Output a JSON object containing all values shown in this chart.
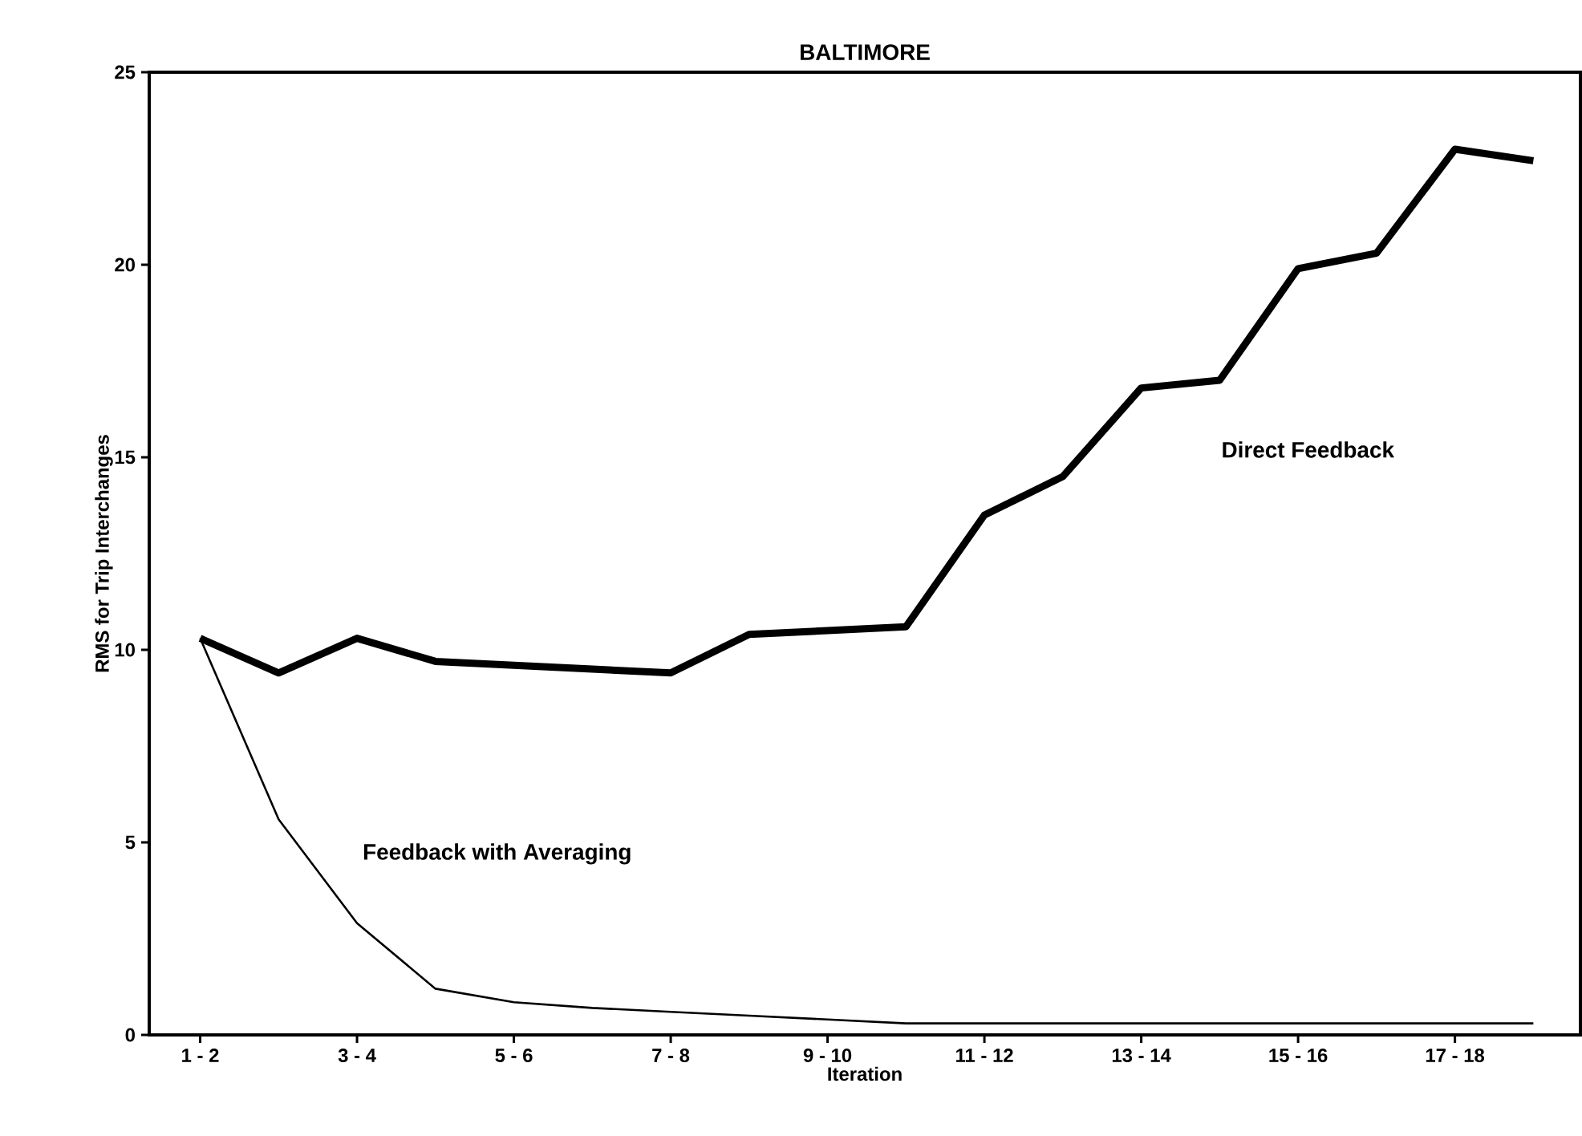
{
  "chart_data": {
    "type": "line",
    "title": "BALTIMORE",
    "xlabel": "Iteration",
    "ylabel": "RMS for Trip Interchanges",
    "categories": [
      "1 - 2",
      null,
      "3 - 4",
      null,
      "5 - 6",
      null,
      "7 - 8",
      null,
      "9 - 10",
      null,
      "11 - 12",
      null,
      "13 - 14",
      null,
      "15 - 16",
      null,
      "17 - 18",
      null
    ],
    "series": [
      {
        "name": "Direct Feedback",
        "color": "#000000",
        "values": [
          10.3,
          9.4,
          10.3,
          9.7,
          9.6,
          9.5,
          9.4,
          10.4,
          10.5,
          10.6,
          13.5,
          14.5,
          16.8,
          17.0,
          19.9,
          20.3,
          23.0,
          22.7
        ]
      },
      {
        "name": "Feedback with Averaging",
        "color": "#000000",
        "values": [
          10.3,
          5.6,
          2.9,
          1.2,
          0.85,
          0.7,
          0.6,
          0.5,
          0.4,
          0.3,
          0.3,
          0.3,
          0.3,
          0.3,
          0.3,
          0.3,
          0.3,
          0.3
        ]
      }
    ],
    "ylim": [
      0,
      25
    ],
    "yticks": [
      0,
      5,
      10,
      15,
      20,
      25
    ],
    "grid": false,
    "legend": false,
    "marker": "none",
    "line_style": "solid"
  }
}
